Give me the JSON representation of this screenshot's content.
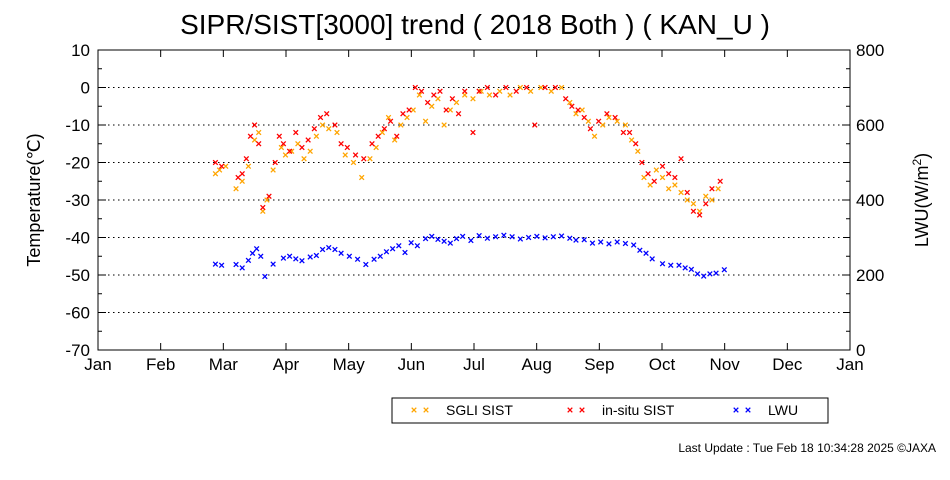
{
  "chart_data": {
    "type": "scatter",
    "title": "SIPR/SIST[3000] trend ( 2018 Both ) ( KAN_U )",
    "ylabel": "Temperature(℃)",
    "y2label_main": "LWU(W/m",
    "y2label_sup": "2",
    "y2label_end": ")",
    "ylim": [
      -70,
      10
    ],
    "y2lim": [
      0,
      800
    ],
    "yticks": [
      "10",
      "0",
      "-10",
      "-20",
      "-30",
      "-40",
      "-50",
      "-60",
      "-70"
    ],
    "y2ticks": [
      "800",
      "600",
      "400",
      "200",
      "0"
    ],
    "months": [
      "Jan",
      "Feb",
      "Mar",
      "Apr",
      "May",
      "Jun",
      "Jul",
      "Aug",
      "Sep",
      "Oct",
      "Nov",
      "Dec",
      "Jan"
    ],
    "grid": "dotted-horizontal",
    "legend_position": "bottom",
    "series": [
      {
        "name": "SGLI SIST",
        "color": "#FFA500",
        "axis": "left",
        "points": [
          [
            "2018-02-27",
            -23
          ],
          [
            "2018-03-01",
            -22
          ],
          [
            "2018-03-04",
            -21
          ],
          [
            "2018-03-09",
            -27
          ],
          [
            "2018-03-12",
            -25
          ],
          [
            "2018-03-15",
            -21
          ],
          [
            "2018-03-18",
            -14
          ],
          [
            "2018-03-20",
            -12
          ],
          [
            "2018-03-22",
            -33
          ],
          [
            "2018-03-24",
            -30
          ],
          [
            "2018-03-27",
            -22
          ],
          [
            "2018-03-31",
            -16
          ],
          [
            "2018-04-02",
            -18
          ],
          [
            "2018-04-05",
            -17
          ],
          [
            "2018-04-08",
            -15
          ],
          [
            "2018-04-11",
            -19
          ],
          [
            "2018-04-14",
            -17
          ],
          [
            "2018-04-17",
            -13
          ],
          [
            "2018-04-20",
            -10
          ],
          [
            "2018-04-23",
            -11
          ],
          [
            "2018-04-27",
            -12
          ],
          [
            "2018-05-01",
            -18
          ],
          [
            "2018-05-05",
            -20
          ],
          [
            "2018-05-09",
            -24
          ],
          [
            "2018-05-13",
            -19
          ],
          [
            "2018-05-16",
            -16
          ],
          [
            "2018-05-19",
            -12
          ],
          [
            "2018-05-22",
            -8
          ],
          [
            "2018-05-25",
            -14
          ],
          [
            "2018-05-28",
            -10
          ],
          [
            "2018-05-31",
            -8
          ],
          [
            "2018-06-03",
            -6
          ],
          [
            "2018-06-06",
            -2
          ],
          [
            "2018-06-09",
            -9
          ],
          [
            "2018-06-12",
            -5
          ],
          [
            "2018-06-15",
            -3
          ],
          [
            "2018-06-18",
            -10
          ],
          [
            "2018-06-21",
            -6
          ],
          [
            "2018-06-24",
            -4
          ],
          [
            "2018-06-28",
            -2
          ],
          [
            "2018-07-02",
            -3
          ],
          [
            "2018-07-06",
            -1
          ],
          [
            "2018-07-10",
            -2
          ],
          [
            "2018-07-15",
            -1
          ],
          [
            "2018-07-20",
            -2
          ],
          [
            "2018-07-25",
            0
          ],
          [
            "2018-07-30",
            -1
          ],
          [
            "2018-08-04",
            0
          ],
          [
            "2018-08-09",
            -1
          ],
          [
            "2018-08-14",
            0
          ],
          [
            "2018-08-18",
            -4
          ],
          [
            "2018-08-21",
            -7
          ],
          [
            "2018-08-24",
            -6
          ],
          [
            "2018-08-27",
            -9
          ],
          [
            "2018-08-30",
            -13
          ],
          [
            "2018-09-03",
            -10
          ],
          [
            "2018-09-06",
            -8
          ],
          [
            "2018-09-10",
            -9
          ],
          [
            "2018-09-14",
            -10
          ],
          [
            "2018-09-17",
            -14
          ],
          [
            "2018-09-20",
            -17
          ],
          [
            "2018-09-23",
            -24
          ],
          [
            "2018-09-26",
            -26
          ],
          [
            "2018-09-29",
            -22
          ],
          [
            "2018-10-02",
            -24
          ],
          [
            "2018-10-05",
            -27
          ],
          [
            "2018-10-08",
            -26
          ],
          [
            "2018-10-11",
            -28
          ],
          [
            "2018-10-14",
            -30
          ],
          [
            "2018-10-17",
            -31
          ],
          [
            "2018-10-20",
            -33
          ],
          [
            "2018-10-23",
            -29
          ],
          [
            "2018-10-26",
            -30
          ],
          [
            "2018-10-29",
            -27
          ]
        ]
      },
      {
        "name": "in-situ SIST",
        "color": "#FF0000",
        "axis": "left",
        "points": [
          [
            "2018-02-27",
            -20
          ],
          [
            "2018-03-02",
            -21
          ],
          [
            "2018-03-10",
            -24
          ],
          [
            "2018-03-12",
            -23
          ],
          [
            "2018-03-14",
            -19
          ],
          [
            "2018-03-16",
            -13
          ],
          [
            "2018-03-18",
            -10
          ],
          [
            "2018-03-20",
            -15
          ],
          [
            "2018-03-22",
            -32
          ],
          [
            "2018-03-25",
            -29
          ],
          [
            "2018-03-28",
            -20
          ],
          [
            "2018-03-30",
            -13
          ],
          [
            "2018-04-01",
            -15
          ],
          [
            "2018-04-04",
            -17
          ],
          [
            "2018-04-07",
            -12
          ],
          [
            "2018-04-10",
            -16
          ],
          [
            "2018-04-13",
            -14
          ],
          [
            "2018-04-16",
            -11
          ],
          [
            "2018-04-19",
            -8
          ],
          [
            "2018-04-22",
            -7
          ],
          [
            "2018-04-26",
            -10
          ],
          [
            "2018-04-29",
            -15
          ],
          [
            "2018-05-02",
            -16
          ],
          [
            "2018-05-06",
            -18
          ],
          [
            "2018-05-10",
            -19
          ],
          [
            "2018-05-14",
            -15
          ],
          [
            "2018-05-17",
            -13
          ],
          [
            "2018-05-20",
            -11
          ],
          [
            "2018-05-23",
            -9
          ],
          [
            "2018-05-26",
            -13
          ],
          [
            "2018-05-29",
            -7
          ],
          [
            "2018-06-01",
            -6
          ],
          [
            "2018-06-04",
            0
          ],
          [
            "2018-06-07",
            -1
          ],
          [
            "2018-06-10",
            -4
          ],
          [
            "2018-06-13",
            -2
          ],
          [
            "2018-06-16",
            -1
          ],
          [
            "2018-06-19",
            -6
          ],
          [
            "2018-06-22",
            -3
          ],
          [
            "2018-06-25",
            -7
          ],
          [
            "2018-06-28",
            -1
          ],
          [
            "2018-07-02",
            -12
          ],
          [
            "2018-07-05",
            -1
          ],
          [
            "2018-07-09",
            0
          ],
          [
            "2018-07-13",
            -2
          ],
          [
            "2018-07-18",
            0
          ],
          [
            "2018-07-23",
            -1
          ],
          [
            "2018-07-28",
            0
          ],
          [
            "2018-08-01",
            -10
          ],
          [
            "2018-08-06",
            0
          ],
          [
            "2018-08-11",
            0
          ],
          [
            "2018-08-16",
            -3
          ],
          [
            "2018-08-19",
            -5
          ],
          [
            "2018-08-22",
            -6
          ],
          [
            "2018-08-25",
            -8
          ],
          [
            "2018-08-28",
            -11
          ],
          [
            "2018-09-01",
            -9
          ],
          [
            "2018-09-05",
            -7
          ],
          [
            "2018-09-09",
            -8
          ],
          [
            "2018-09-13",
            -12
          ],
          [
            "2018-09-16",
            -12
          ],
          [
            "2018-09-19",
            -15
          ],
          [
            "2018-09-22",
            -20
          ],
          [
            "2018-09-25",
            -23
          ],
          [
            "2018-09-28",
            -25
          ],
          [
            "2018-10-02",
            -21
          ],
          [
            "2018-10-05",
            -23
          ],
          [
            "2018-10-08",
            -24
          ],
          [
            "2018-10-11",
            -19
          ],
          [
            "2018-10-14",
            -28
          ],
          [
            "2018-10-17",
            -33
          ],
          [
            "2018-10-20",
            -34
          ],
          [
            "2018-10-23",
            -31
          ],
          [
            "2018-10-26",
            -27
          ],
          [
            "2018-10-30",
            -25
          ]
        ]
      },
      {
        "name": "LWU",
        "color": "#0000FF",
        "axis": "right",
        "points": [
          [
            "2018-02-27",
            229
          ],
          [
            "2018-03-02",
            226
          ],
          [
            "2018-03-09",
            228
          ],
          [
            "2018-03-12",
            219
          ],
          [
            "2018-03-15",
            239
          ],
          [
            "2018-03-17",
            258
          ],
          [
            "2018-03-19",
            270
          ],
          [
            "2018-03-21",
            250
          ],
          [
            "2018-03-23",
            196
          ],
          [
            "2018-03-27",
            229
          ],
          [
            "2018-04-01",
            245
          ],
          [
            "2018-04-04",
            250
          ],
          [
            "2018-04-07",
            243
          ],
          [
            "2018-04-10",
            238
          ],
          [
            "2018-04-14",
            248
          ],
          [
            "2018-04-17",
            252
          ],
          [
            "2018-04-20",
            268
          ],
          [
            "2018-04-23",
            273
          ],
          [
            "2018-04-26",
            268
          ],
          [
            "2018-04-29",
            258
          ],
          [
            "2018-05-03",
            250
          ],
          [
            "2018-05-07",
            242
          ],
          [
            "2018-05-11",
            228
          ],
          [
            "2018-05-15",
            242
          ],
          [
            "2018-05-18",
            250
          ],
          [
            "2018-05-21",
            262
          ],
          [
            "2018-05-24",
            270
          ],
          [
            "2018-05-27",
            278
          ],
          [
            "2018-05-30",
            260
          ],
          [
            "2018-06-02",
            286
          ],
          [
            "2018-06-05",
            278
          ],
          [
            "2018-06-09",
            297
          ],
          [
            "2018-06-12",
            303
          ],
          [
            "2018-06-15",
            295
          ],
          [
            "2018-06-18",
            290
          ],
          [
            "2018-06-21",
            285
          ],
          [
            "2018-06-24",
            297
          ],
          [
            "2018-06-27",
            303
          ],
          [
            "2018-07-01",
            292
          ],
          [
            "2018-07-05",
            305
          ],
          [
            "2018-07-09",
            298
          ],
          [
            "2018-07-13",
            302
          ],
          [
            "2018-07-17",
            306
          ],
          [
            "2018-07-21",
            302
          ],
          [
            "2018-07-25",
            296
          ],
          [
            "2018-07-29",
            300
          ],
          [
            "2018-08-02",
            303
          ],
          [
            "2018-08-06",
            299
          ],
          [
            "2018-08-10",
            302
          ],
          [
            "2018-08-14",
            304
          ],
          [
            "2018-08-18",
            298
          ],
          [
            "2018-08-21",
            293
          ],
          [
            "2018-08-25",
            294
          ],
          [
            "2018-08-29",
            285
          ],
          [
            "2018-09-02",
            288
          ],
          [
            "2018-09-06",
            283
          ],
          [
            "2018-09-10",
            288
          ],
          [
            "2018-09-14",
            284
          ],
          [
            "2018-09-18",
            280
          ],
          [
            "2018-09-21",
            266
          ],
          [
            "2018-09-24",
            258
          ],
          [
            "2018-09-27",
            243
          ],
          [
            "2018-10-02",
            230
          ],
          [
            "2018-10-06",
            226
          ],
          [
            "2018-10-10",
            226
          ],
          [
            "2018-10-13",
            219
          ],
          [
            "2018-10-16",
            215
          ],
          [
            "2018-10-19",
            203
          ],
          [
            "2018-10-22",
            197
          ],
          [
            "2018-10-25",
            203
          ],
          [
            "2018-10-28",
            205
          ],
          [
            "2018-11-01",
            214
          ]
        ]
      }
    ]
  },
  "legend": {
    "items": [
      {
        "label": "SGLI SIST",
        "color": "#FFA500"
      },
      {
        "label": "in-situ SIST",
        "color": "#FF0000"
      },
      {
        "label": "LWU",
        "color": "#0000FF"
      }
    ]
  },
  "footer": {
    "text": "Last Update : Tue Feb 18 10:34:28 2025 ©JAXA"
  }
}
